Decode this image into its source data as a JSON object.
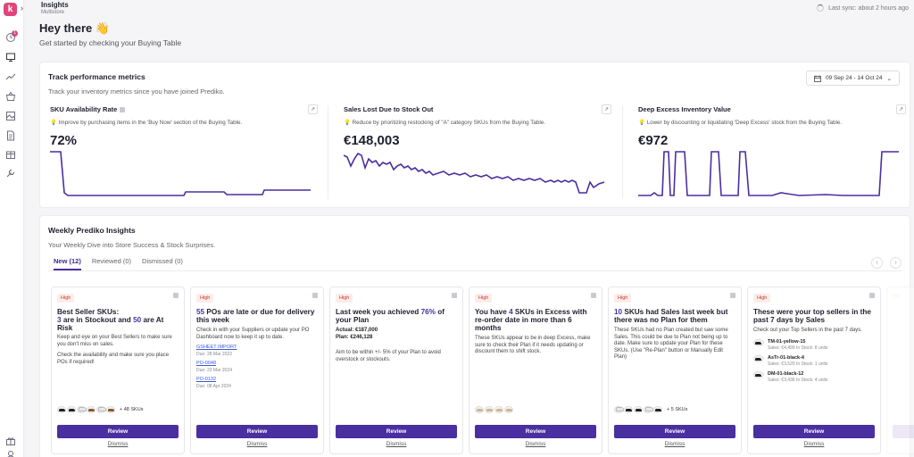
{
  "app": {
    "logo": "k",
    "title": "Insights",
    "subtitle": "Multistore",
    "sync": "Last sync: about 2 hours ago"
  },
  "sidebar": {
    "badge": "1",
    "icons": [
      "clock-icon",
      "inbox-icon",
      "trend-icon",
      "basket-icon",
      "image-icon",
      "document-icon",
      "box-icon",
      "wrench-icon",
      "gift-icon",
      "user-icon"
    ]
  },
  "greeting": {
    "title": "Hey there 👋",
    "subtitle": "Get started by checking your Buying Table"
  },
  "metrics": {
    "title": "Track performance metrics",
    "subtitle": "Track your inventory metrics since you have joined Prediko.",
    "date_range": "09 Sep 24 - 14 Oct 24",
    "items": [
      {
        "title": "SKU Availability Rate",
        "hint": "💡 Improve by purchasing items in the 'Buy Now' section of the Buying Table.",
        "value": "72%"
      },
      {
        "title": "Sales Lost Due to Stock Out",
        "hint": "💡 Reduce by prioritizing restocking of \"A\" category SKUs from the Buying Table.",
        "value": "€148,003"
      },
      {
        "title": "Deep Excess Inventory Value",
        "hint": "💡 Lower by discounting or liquidating 'Deep Excess' stock from the Buying Table.",
        "value": "€972"
      }
    ]
  },
  "insights": {
    "title": "Weekly Prediko Insights",
    "subtitle": "Your Weekly Dive into Store Success & Stock Surprises.",
    "tabs": [
      "New (12)",
      "Reviewed (0)",
      "Dismissed (0)"
    ],
    "review_label": "Review",
    "dismiss_label": "Dismiss",
    "chip": "High",
    "cards": [
      {
        "t1": "Best Seller SKUs:",
        "n1": "3",
        "t2": " are in Stockout and ",
        "n2": "50",
        "t3": " are At Risk",
        "b1": "Keep and eye on your Best Sellers to make sure you don't miss on sales.",
        "b2": "Check the availability and make sure you place POs if required!",
        "more": "+ 48 SKUs"
      },
      {
        "n1": "55",
        "t1": " POs are late or due for delivery this week",
        "b1": "Check in with your Suppliers or update your PO Dashboard now to keep it up to date.",
        "pos": [
          {
            "id": "GSHEET IMPORT",
            "due": "Due: 28 Mar 2022"
          },
          {
            "id": "PO-0048",
            "due": "Due: 23 Mar 2024"
          },
          {
            "id": "PO-0132",
            "due": "Due: 08 Apr 2024"
          }
        ]
      },
      {
        "t1": "Last week you achieved ",
        "n1": "76%",
        "t2": " of your Plan",
        "actual": "Actual: €187,000",
        "plan": "Plan: €246,128",
        "b1": "Aim to be within +/- 5% of your Plan to avoid overstock or stockouts."
      },
      {
        "t1": "You have ",
        "n1": "4",
        "t2": " SKUs in Excess with re-order date in more than 6 months",
        "b1": "These SKUs appear to be in deep Excess, make sure to check their Plan if it needs updating or discount them to shift stock."
      },
      {
        "n1": "10",
        "t1": " SKUs had Sales last week but there was no Plan for them",
        "b1": "These SKUs had no Plan created but saw some Sales. This could be due to Plan not being up to date. Make sure to update your Plan for these SKUs. (Use \"Re-Plan\" button or Manually Edit Plan)",
        "more": "+ 5 SKUs"
      },
      {
        "t1": "These were your top sellers in the past 7 days by Sales",
        "b1": "Check out your Top Sellers in the past 7 days.",
        "sellers": [
          {
            "name": "TM-01-yellow-15",
            "meta": "Sales: €4,499 In Stock: 8 units"
          },
          {
            "name": "AsTr-01-black-4",
            "meta": "Sales: €3,520 In Stock: 1 units"
          },
          {
            "name": "DM-01-black-12",
            "meta": "Sales: €3,436 In Stock: 4 units"
          }
        ]
      }
    ]
  }
}
